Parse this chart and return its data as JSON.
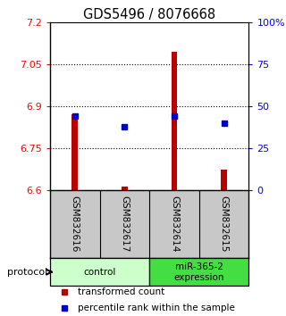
{
  "title": "GDS5496 / 8076668",
  "samples": [
    "GSM832616",
    "GSM832617",
    "GSM832614",
    "GSM832615"
  ],
  "red_values": [
    6.872,
    6.612,
    7.093,
    6.675
  ],
  "blue_values_pct": [
    44,
    38,
    44,
    40
  ],
  "ylim_left": [
    6.6,
    7.2
  ],
  "ylim_right": [
    0,
    100
  ],
  "yticks_left": [
    6.6,
    6.75,
    6.9,
    7.05,
    7.2
  ],
  "yticks_right": [
    0,
    25,
    50,
    75,
    100
  ],
  "ytick_labels_left": [
    "6.6",
    "6.75",
    "6.9",
    "7.05",
    "7.2"
  ],
  "ytick_labels_right": [
    "0",
    "25",
    "50",
    "75",
    "100%"
  ],
  "hlines": [
    6.75,
    6.9,
    7.05
  ],
  "bar_color": "#bb0000",
  "marker_color": "#0000cc",
  "bar_bottom": 6.6,
  "bar_width": 0.12,
  "groups": [
    {
      "label": "control",
      "indices": [
        0,
        1
      ],
      "color": "#ccffcc"
    },
    {
      "label": "miR-365-2\nexpression",
      "indices": [
        2,
        3
      ],
      "color": "#44dd44"
    }
  ],
  "protocol_label": "protocol",
  "legend_items": [
    {
      "color": "#bb0000",
      "label": "transformed count"
    },
    {
      "color": "#0000cc",
      "label": "percentile rank within the sample"
    }
  ],
  "background_color": "#ffffff",
  "plot_bg_color": "#ffffff",
  "sample_bg_color": "#c8c8c8"
}
